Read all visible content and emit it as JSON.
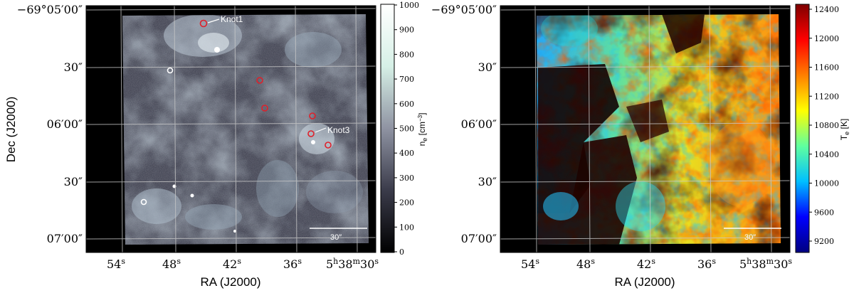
{
  "left_panel": {
    "ylabel": "Dec (J2000)",
    "xlabel": "RA (J2000)",
    "y_ticks": [
      "−69°05′00″",
      "30″",
      "06′00″",
      "30″",
      "07′00″"
    ],
    "x_ticks": [
      "54",
      "48",
      "42",
      "36"
    ],
    "x_tick_unit": "s",
    "x_last_tick": {
      "h": "5",
      "m": "38",
      "s": "30"
    },
    "colorbar_label": "n",
    "colorbar_label_sub": "e",
    "colorbar_label_unit": "[cm",
    "colorbar_label_unit_exp": "−3",
    "colorbar_label_close": "]",
    "colorbar_ticks": [
      "0",
      "100",
      "200",
      "300",
      "400",
      "500",
      "600",
      "700",
      "800",
      "900",
      "1000"
    ],
    "colorbar_colors": [
      "#000000",
      "#3a3b4a",
      "#8f93a2",
      "#d6f0e6",
      "#ffffff"
    ],
    "annotations": {
      "knot1": "Knot1",
      "knot3": "Knot3",
      "scalebar": "30″"
    },
    "marker_color": "#e0202a"
  },
  "right_panel": {
    "xlabel": "RA (J2000)",
    "y_ticks": [
      "−69°05′00″",
      "30″",
      "06′00″",
      "30″",
      "07′00″"
    ],
    "x_ticks": [
      "54",
      "48",
      "42",
      "36"
    ],
    "x_tick_unit": "s",
    "x_last_tick": {
      "h": "5",
      "m": "38",
      "s": "30"
    },
    "colorbar_label": "T",
    "colorbar_label_sub": "e",
    "colorbar_label_unit": "[K]",
    "colorbar_ticks": [
      "9200",
      "9600",
      "10000",
      "10400",
      "10800",
      "11200",
      "11600",
      "12000",
      "12400"
    ],
    "colorbar_colors": [
      "#00007f",
      "#0000ff",
      "#00bfff",
      "#5fff9f",
      "#ffff00",
      "#ff7f00",
      "#ff0000",
      "#7f0000"
    ],
    "annotations": {
      "scalebar": "30″"
    }
  }
}
